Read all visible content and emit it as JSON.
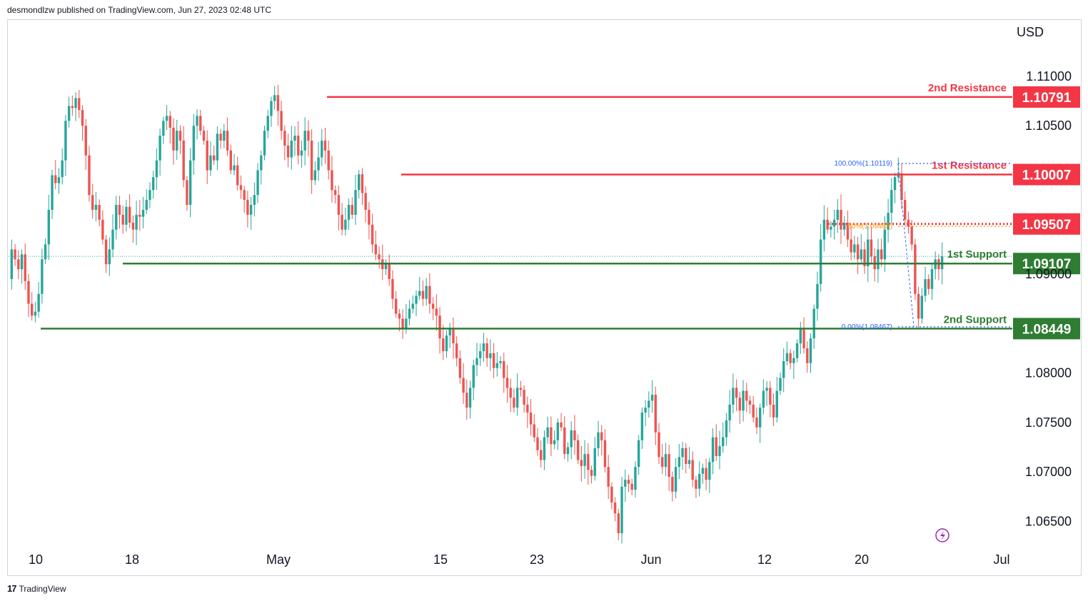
{
  "header": {
    "publisher": "desmondlzw published on TradingView.com, Jun 27, 2023 02:48 UTC"
  },
  "footer": {
    "brand": "TradingView",
    "logo_glyph": "17"
  },
  "colors": {
    "up": "#26a69a",
    "down": "#ef5350",
    "resistance": "#f23645",
    "support": "#2e7d32",
    "fib": "#2962ff",
    "fib_mid": "#ff9800",
    "last_price_line": "#26a69a"
  },
  "chart_data": {
    "type": "candlestick",
    "currency": "USD",
    "ylim": [
      1.0625,
      1.1157
    ],
    "yticks": [
      {
        "value": 1.11,
        "label": "1.11000"
      },
      {
        "value": 1.105,
        "label": "1.10500"
      },
      {
        "value": 1.09,
        "label": "1.09000"
      },
      {
        "value": 1.08,
        "label": "1.08000"
      },
      {
        "value": 1.075,
        "label": "1.07500"
      },
      {
        "value": 1.07,
        "label": "1.07000"
      },
      {
        "value": 1.065,
        "label": "1.06500"
      }
    ],
    "xticks": [
      "10",
      "18",
      "May",
      "15",
      "23",
      "Jun",
      "12",
      "20",
      "Jul"
    ],
    "levels": [
      {
        "name": "2nd Resistance",
        "value": 1.10791,
        "label": "1.10791",
        "kind": "resistance"
      },
      {
        "name": "1st Resistance",
        "value": 1.10007,
        "label": "1.10007",
        "kind": "resistance"
      },
      {
        "name": "",
        "value": 1.09507,
        "label": "1.09507",
        "kind": "pivot"
      },
      {
        "name": "1st Support",
        "value": 1.09107,
        "label": "1.09107",
        "kind": "support"
      },
      {
        "name": "2nd Support",
        "value": 1.08449,
        "label": "1.08449",
        "kind": "support"
      }
    ],
    "fib": [
      {
        "label": "100.00%(1.10119)",
        "value": 1.10119
      },
      {
        "label": "50%(1.09483)",
        "value": 1.09483
      },
      {
        "label": "0.00%(1.08467)",
        "value": 1.08467
      }
    ],
    "last_price": 1.0918,
    "path": [
      1.0895,
      1.0925,
      1.0915,
      1.0905,
      1.092,
      1.0893,
      1.087,
      1.0858,
      1.0862,
      1.088,
      1.0915,
      1.093,
      1.0965,
      1.1,
      1.0992,
      1.0998,
      1.1015,
      1.1055,
      1.107,
      1.1068,
      1.1078,
      1.1066,
      1.105,
      1.102,
      1.098,
      1.0965,
      1.097,
      1.0955,
      1.0935,
      1.091,
      1.0925,
      1.0945,
      1.097,
      1.096,
      1.095,
      1.0968,
      1.0952,
      1.0945,
      1.096,
      1.0958,
      1.0965,
      1.0975,
      1.0985,
      1.0998,
      1.1015,
      1.104,
      1.1055,
      1.106,
      1.1048,
      1.1025,
      1.1045,
      1.1035,
      1.0995,
      1.097,
      1.1015,
      1.105,
      1.106,
      1.1045,
      1.1035,
      1.1005,
      1.102,
      1.1015,
      1.1042,
      1.1035,
      1.1045,
      1.1025,
      1.1005,
      1.101,
      1.099,
      1.0985,
      1.0975,
      1.096,
      1.097,
      1.098,
      1.1005,
      1.102,
      1.1045,
      1.106,
      1.1075,
      1.1081,
      1.1065,
      1.1045,
      1.103,
      1.1018,
      1.1035,
      1.104,
      1.102,
      1.1025,
      1.1045,
      1.1035,
      1.0995,
      1.1005,
      1.1018,
      1.1035,
      1.1025,
      1.1005,
      1.0985,
      1.098,
      1.096,
      1.0945,
      1.0955,
      1.097,
      1.096,
      1.0985,
      1.1001,
      1.0982,
      1.0965,
      1.095,
      1.093,
      1.092,
      1.0915,
      1.0905,
      1.091,
      1.0895,
      1.0875,
      1.086,
      1.0855,
      1.0845,
      1.0855,
      1.0865,
      1.087,
      1.0878,
      1.0883,
      1.0875,
      1.0888,
      1.087,
      1.0865,
      1.0858,
      1.0835,
      1.0822,
      1.0838,
      1.0845,
      1.083,
      1.0815,
      1.0795,
      1.078,
      1.0765,
      1.0785,
      1.0808,
      1.0815,
      1.0822,
      1.083,
      1.0815,
      1.082,
      1.0805,
      1.081,
      1.0812,
      1.0795,
      1.0785,
      1.0775,
      1.0765,
      1.0785,
      1.0783,
      1.0768,
      1.076,
      1.0748,
      1.0735,
      1.0722,
      1.0712,
      1.0735,
      1.0745,
      1.0728,
      1.0732,
      1.075,
      1.0745,
      1.0718,
      1.0725,
      1.0742,
      1.0732,
      1.0712,
      1.0706,
      1.0718,
      1.0702,
      1.0696,
      1.0724,
      1.074,
      1.0732,
      1.0705,
      1.0685,
      1.0669,
      1.0658,
      1.0638,
      1.0685,
      1.0692,
      1.0688,
      1.0682,
      1.0705,
      1.0732,
      1.076,
      1.0765,
      1.0772,
      1.0778,
      1.074,
      1.0715,
      1.0705,
      1.0718,
      1.0695,
      1.068,
      1.0705,
      1.0715,
      1.0724,
      1.0708,
      1.0712,
      1.0692,
      1.0683,
      1.0698,
      1.0704,
      1.0692,
      1.071,
      1.0735,
      1.0716,
      1.0726,
      1.0735,
      1.0752,
      1.0768,
      1.0785,
      1.0775,
      1.0762,
      1.0782,
      1.0772,
      1.0768,
      1.0755,
      1.0745,
      1.0765,
      1.0782,
      1.0785,
      1.0768,
      1.0755,
      1.0782,
      1.0795,
      1.0812,
      1.082,
      1.081,
      1.0815,
      1.083,
      1.0845,
      1.0825,
      1.081,
      1.0835,
      1.0865,
      1.089,
      1.0935,
      1.0955,
      1.0945,
      1.0948,
      1.0955,
      1.0965,
      1.0945,
      1.0952,
      1.0935,
      1.0922,
      1.093,
      1.0915,
      1.0925,
      1.0908,
      1.0935,
      1.0918,
      1.0905,
      1.0925,
      1.0915,
      1.0945,
      1.0962,
      1.0985,
      1.0998,
      1.1002,
      1.0975,
      1.0955,
      1.0948,
      1.093,
      1.088,
      1.0855,
      1.0878,
      1.0895,
      1.0885,
      1.0905,
      1.0915,
      1.0905,
      1.0918
    ]
  }
}
